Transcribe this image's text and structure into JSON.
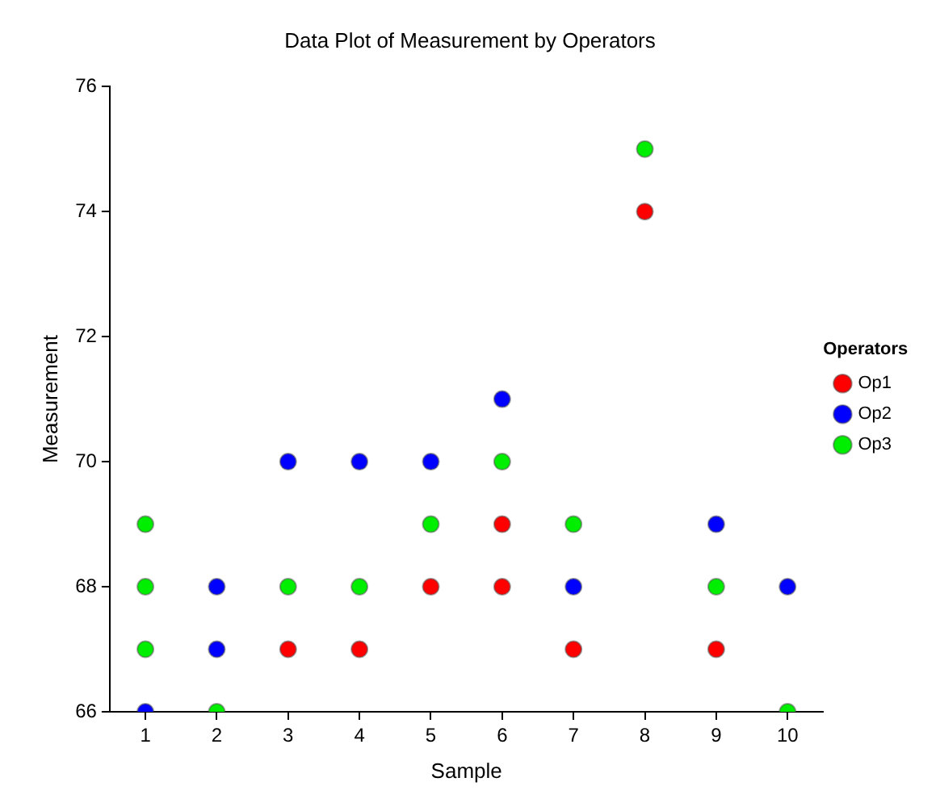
{
  "chart_data": {
    "type": "scatter",
    "title": "Data Plot of Measurement by Operators",
    "xlabel": "Sample",
    "ylabel": "Measurement",
    "legend_title": "Operators",
    "legend": "right",
    "grid": false,
    "marker": "circle",
    "xlim": [
      0.5,
      10.5
    ],
    "xticks": [
      1,
      2,
      3,
      4,
      5,
      6,
      7,
      8,
      9,
      10
    ],
    "ylim": [
      66,
      76
    ],
    "yticks": [
      66,
      68,
      70,
      72,
      74,
      76
    ],
    "series": [
      {
        "name": "Op1",
        "color": "#ff0000",
        "x": [
          3,
          4,
          5,
          6,
          6,
          7,
          8,
          9
        ],
        "values": [
          67,
          67,
          68,
          69,
          68,
          67,
          74,
          67
        ]
      },
      {
        "name": "Op2",
        "color": "#0000ff",
        "x": [
          1,
          2,
          2,
          3,
          4,
          5,
          6,
          7,
          9,
          10
        ],
        "values": [
          66,
          68,
          67,
          70,
          70,
          70,
          71,
          68,
          69,
          68
        ]
      },
      {
        "name": "Op3",
        "color": "#00ee00",
        "x": [
          1,
          1,
          1,
          2,
          3,
          4,
          5,
          6,
          7,
          8,
          9,
          10
        ],
        "values": [
          69,
          68,
          67,
          66,
          68,
          68,
          69,
          70,
          69,
          75,
          68,
          66
        ]
      }
    ]
  }
}
